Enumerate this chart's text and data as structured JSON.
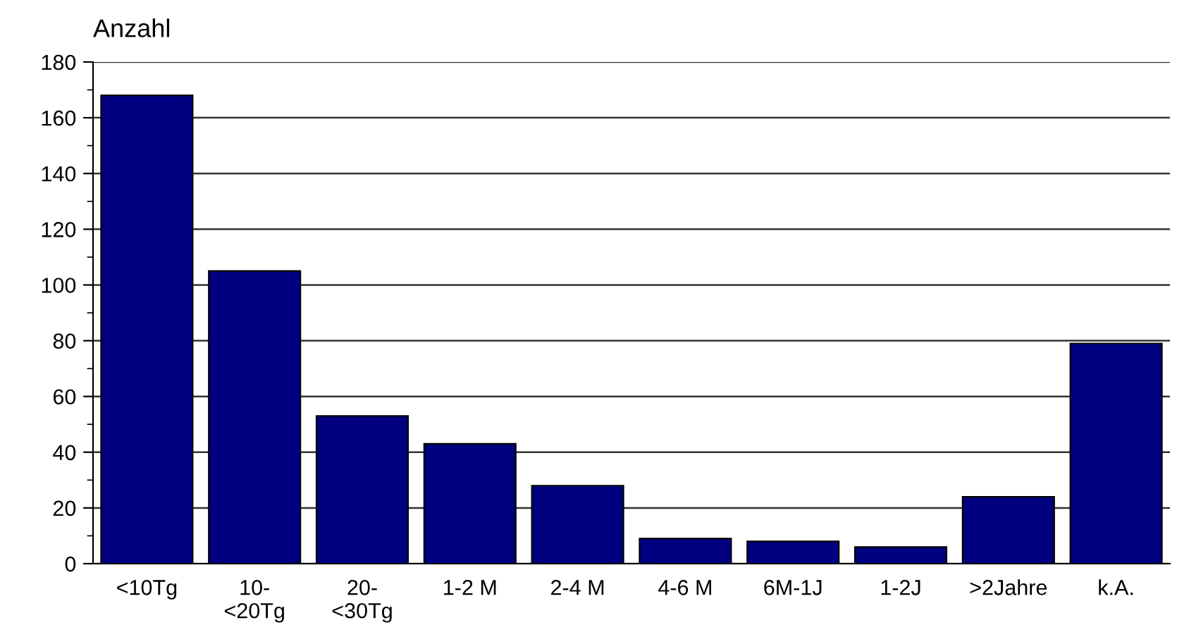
{
  "chart_data": {
    "type": "bar",
    "ylabel": "Anzahl",
    "categories": [
      "<10Tg",
      "10-\n<20Tg",
      "20-\n<30Tg",
      "1-2 M",
      "2-4 M",
      "4-6 M",
      "6M-1J",
      "1-2J",
      ">2Jahre",
      "k.A."
    ],
    "values": [
      168,
      105,
      53,
      43,
      28,
      9,
      8,
      6,
      24,
      79
    ],
    "color": "#000080",
    "ylim": [
      0,
      180
    ],
    "yticks": [
      0,
      20,
      40,
      60,
      80,
      100,
      120,
      140,
      160,
      180
    ],
    "grid": "y"
  }
}
